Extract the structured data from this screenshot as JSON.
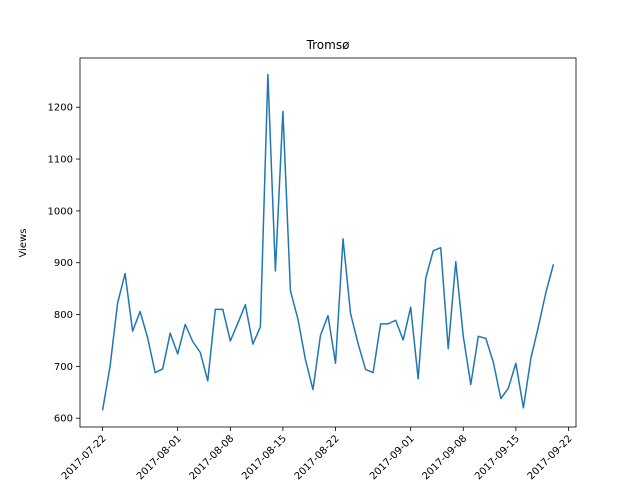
{
  "chart_data": {
    "type": "line",
    "title": "Tromsø",
    "y_label": "Views",
    "color": "#1f77b4",
    "x": [
      "2017-07-22",
      "2017-07-23",
      "2017-07-24",
      "2017-07-25",
      "2017-07-26",
      "2017-07-27",
      "2017-07-28",
      "2017-07-29",
      "2017-07-30",
      "2017-07-31",
      "2017-08-01",
      "2017-08-02",
      "2017-08-03",
      "2017-08-04",
      "2017-08-05",
      "2017-08-06",
      "2017-08-07",
      "2017-08-08",
      "2017-08-09",
      "2017-08-10",
      "2017-08-11",
      "2017-08-12",
      "2017-08-13",
      "2017-08-14",
      "2017-08-15",
      "2017-08-16",
      "2017-08-17",
      "2017-08-18",
      "2017-08-19",
      "2017-08-20",
      "2017-08-21",
      "2017-08-22",
      "2017-08-23",
      "2017-08-24",
      "2017-08-25",
      "2017-08-26",
      "2017-08-27",
      "2017-08-28",
      "2017-08-29",
      "2017-08-30",
      "2017-08-31",
      "2017-09-01",
      "2017-09-02",
      "2017-09-03",
      "2017-09-04",
      "2017-09-05",
      "2017-09-06",
      "2017-09-07",
      "2017-09-08",
      "2017-09-09",
      "2017-09-10",
      "2017-09-11",
      "2017-09-12",
      "2017-09-13",
      "2017-09-14",
      "2017-09-15",
      "2017-09-16",
      "2017-09-17",
      "2017-09-18",
      "2017-09-19",
      "2017-09-20"
    ],
    "values": [
      615,
      700,
      822,
      879,
      768,
      806,
      755,
      688,
      695,
      764,
      724,
      781,
      748,
      727,
      672,
      810,
      810,
      749,
      783,
      819,
      743,
      776,
      1263,
      884,
      1192,
      846,
      791,
      713,
      655,
      760,
      798,
      706,
      946,
      802,
      744,
      694,
      688,
      782,
      782,
      789,
      751,
      814,
      676,
      870,
      923,
      929,
      734,
      902,
      758,
      665,
      758,
      754,
      708,
      638,
      658,
      706,
      620,
      716,
      777,
      843,
      897
    ],
    "xlim": [
      "2017-07-19",
      "2017-09-23"
    ],
    "xticks": [
      "2017-07-22",
      "2017-08-01",
      "2017-08-08",
      "2017-08-15",
      "2017-08-22",
      "2017-09-01",
      "2017-09-08",
      "2017-09-15",
      "2017-09-22"
    ],
    "ylim": [
      583,
      1295
    ],
    "yticks": [
      600,
      700,
      800,
      900,
      1000,
      1100,
      1200
    ],
    "grid": false
  }
}
